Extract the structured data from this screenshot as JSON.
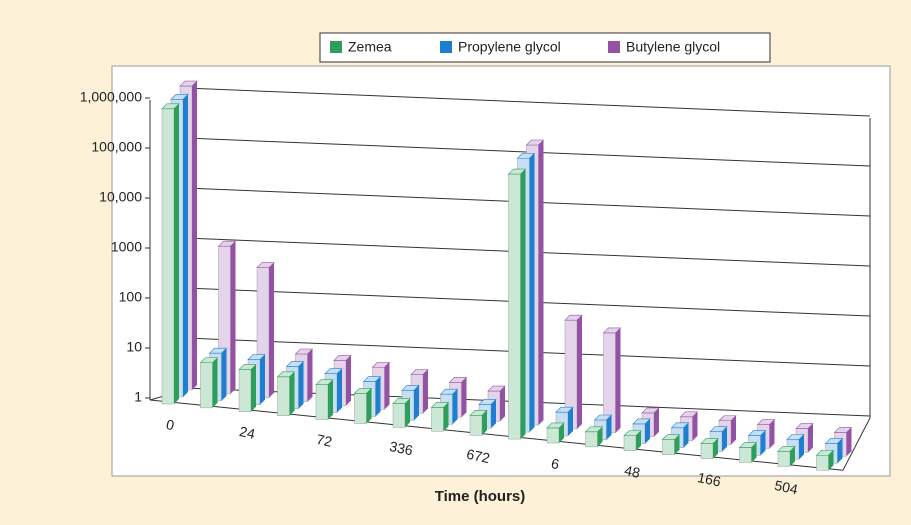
{
  "chart_data": {
    "type": "bar3d",
    "x_label": "Time (hours)",
    "categories": [
      "0",
      null,
      "24",
      null,
      "72",
      null,
      "336",
      null,
      "672",
      null,
      "6",
      null,
      "48",
      null,
      "166",
      null,
      "504",
      null
    ],
    "series": [
      {
        "name": "Zemea",
        "color": "#2e9e5b",
        "values": [
          800000,
          8,
          7,
          6,
          5,
          4,
          3,
          3,
          2.5,
          200000,
          2,
          2,
          2,
          2,
          2,
          2,
          2,
          2
        ]
      },
      {
        "name": "Propylene glycol",
        "color": "#1e7fd0",
        "values": [
          900000,
          9,
          8,
          7,
          6,
          5,
          4,
          4,
          3,
          300000,
          3,
          2.5,
          2.5,
          2.5,
          2.5,
          2.5,
          2.5,
          2.5
        ]
      },
      {
        "name": "Butylene glycol",
        "color": "#9452a5",
        "values": [
          1200000,
          900,
          400,
          9,
          8,
          7,
          6,
          5,
          4,
          400000,
          150,
          100,
          3,
          3,
          3,
          3,
          3,
          3
        ]
      }
    ],
    "log_scale": true,
    "ylim": [
      1,
      1000000
    ],
    "yticks": [
      1,
      10,
      100,
      1000,
      {
        "value": 10000,
        "label": "10,000"
      },
      {
        "value": 100000,
        "label": "100,000"
      },
      {
        "value": 1000000,
        "label": "1,000,000"
      }
    ],
    "grid": true
  }
}
